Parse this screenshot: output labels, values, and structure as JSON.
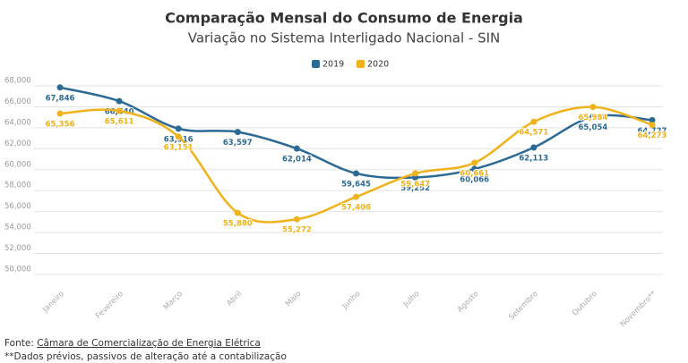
{
  "chart_data": {
    "type": "line",
    "title": "Comparação Mensal do Consumo de Energia",
    "subtitle": "Variação no Sistema Interligado Nacional - SIN",
    "categories": [
      "Janeiro",
      "Fevereiro",
      "Março",
      "Abril",
      "Maio",
      "Junho",
      "Julho",
      "Agosto",
      "Setembro",
      "Outubro",
      "Novembro**"
    ],
    "series": [
      {
        "name": "2019",
        "color": "#2b6a94",
        "values": [
          67846,
          66540,
          63916,
          63597,
          62014,
          59645,
          59252,
          60066,
          62113,
          65054,
          64727
        ],
        "value_labels": [
          "67,846",
          "66,540",
          "63,916",
          "63,597",
          "62,014",
          "59,645",
          "59,252",
          "60,066",
          "62,113",
          "65,054",
          "64,727"
        ]
      },
      {
        "name": "2020",
        "color": "#efb21b",
        "values": [
          65356,
          65611,
          63151,
          55880,
          55272,
          57406,
          59647,
          60661,
          64571,
          65984,
          64273
        ],
        "value_labels": [
          "65,356",
          "65,611",
          "63,151",
          "55,880",
          "55,272",
          "57,406",
          "59,647",
          "60,661",
          "64,571",
          "65,984",
          "64,273"
        ]
      }
    ],
    "ylim": [
      50000,
      68000
    ],
    "yticks": [
      {
        "value": 50000,
        "label": "50,000"
      },
      {
        "value": 52000,
        "label": "52,000"
      },
      {
        "value": 54000,
        "label": "54,000"
      },
      {
        "value": 56000,
        "label": "56,000"
      },
      {
        "value": 58000,
        "label": "58,000"
      },
      {
        "value": 60000,
        "label": "60,000"
      },
      {
        "value": 62000,
        "label": "62,000"
      },
      {
        "value": 64000,
        "label": "64,000"
      },
      {
        "value": 66000,
        "label": "66,000"
      },
      {
        "value": 68000,
        "label": "68,000"
      }
    ],
    "grid": true,
    "legend": "top"
  },
  "footer": {
    "source_prefix": "Fonte:",
    "source_link": "Câmara de Comercialização de Energia Elétrica",
    "note": "**Dados prévios, passivos de alteração até a contabilização"
  }
}
